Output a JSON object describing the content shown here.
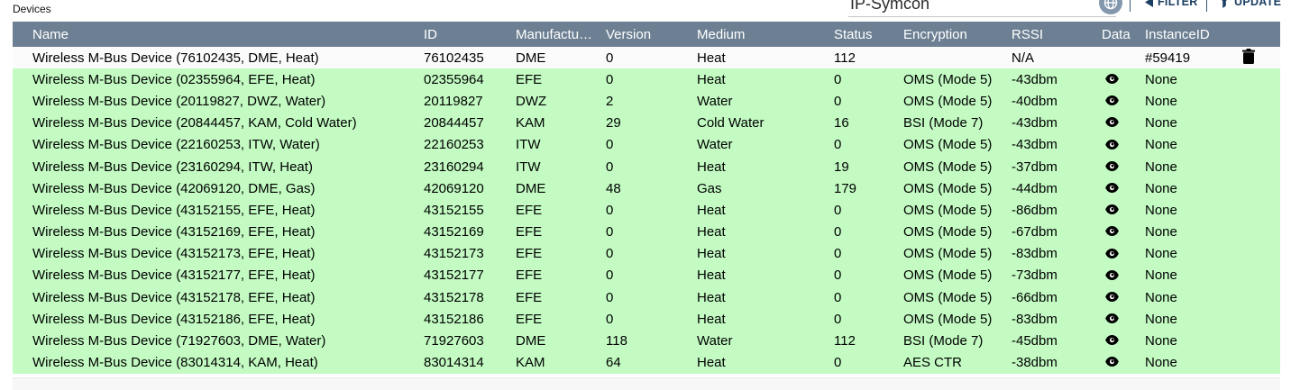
{
  "page": {
    "label": "Devices"
  },
  "toolbar": {
    "app_title": "IP-Symcon",
    "filter_label": "FILTER",
    "update_label": "UPDATE",
    "divider": "|"
  },
  "colors": {
    "header_bg": "#6d8093",
    "highlight_green": "#c3fbc3",
    "toolbar_fg": "#1b3f63",
    "globe_bg": "#8498ad"
  },
  "icons": {
    "globe": "globe-icon",
    "filter": "filter-funnel-icon",
    "update": "update-funnel-icon",
    "eye": "eye-icon",
    "trash": "trash-icon"
  },
  "table": {
    "columns": [
      {
        "key": "name",
        "label": "Name"
      },
      {
        "key": "id",
        "label": "ID"
      },
      {
        "key": "manufacturer",
        "label": "Manufactu…"
      },
      {
        "key": "version",
        "label": "Version"
      },
      {
        "key": "medium",
        "label": "Medium"
      },
      {
        "key": "status",
        "label": "Status"
      },
      {
        "key": "encryption",
        "label": "Encryption"
      },
      {
        "key": "rssi",
        "label": "RSSI"
      },
      {
        "key": "data",
        "label": "Data"
      },
      {
        "key": "instanceid",
        "label": "InstanceID"
      },
      {
        "key": "action",
        "label": ""
      }
    ],
    "rows": [
      {
        "name": "Wireless M-Bus Device (76102435, DME, Heat)",
        "id": "76102435",
        "manufacturer": "DME",
        "version": "0",
        "medium": "Heat",
        "status": "112",
        "encryption": "",
        "rssi": "N/A",
        "has_data_icon": false,
        "instanceid": "#59419",
        "deletable": true,
        "highlight": false
      },
      {
        "name": "Wireless M-Bus Device (02355964, EFE, Heat)",
        "id": "02355964",
        "manufacturer": "EFE",
        "version": "0",
        "medium": "Heat",
        "status": "0",
        "encryption": "OMS (Mode 5)",
        "rssi": "-43dbm",
        "has_data_icon": true,
        "instanceid": "None",
        "deletable": false,
        "highlight": true
      },
      {
        "name": "Wireless M-Bus Device (20119827, DWZ, Water)",
        "id": "20119827",
        "manufacturer": "DWZ",
        "version": "2",
        "medium": "Water",
        "status": "0",
        "encryption": "OMS (Mode 5)",
        "rssi": "-40dbm",
        "has_data_icon": true,
        "instanceid": "None",
        "deletable": false,
        "highlight": true
      },
      {
        "name": "Wireless M-Bus Device (20844457, KAM, Cold Water)",
        "id": "20844457",
        "manufacturer": "KAM",
        "version": "29",
        "medium": "Cold Water",
        "status": "16",
        "encryption": "BSI (Mode 7)",
        "rssi": "-43dbm",
        "has_data_icon": true,
        "instanceid": "None",
        "deletable": false,
        "highlight": true
      },
      {
        "name": "Wireless M-Bus Device (22160253, ITW, Water)",
        "id": "22160253",
        "manufacturer": "ITW",
        "version": "0",
        "medium": "Water",
        "status": "0",
        "encryption": "OMS (Mode 5)",
        "rssi": "-43dbm",
        "has_data_icon": true,
        "instanceid": "None",
        "deletable": false,
        "highlight": true
      },
      {
        "name": "Wireless M-Bus Device (23160294, ITW, Heat)",
        "id": "23160294",
        "manufacturer": "ITW",
        "version": "0",
        "medium": "Heat",
        "status": "19",
        "encryption": "OMS (Mode 5)",
        "rssi": "-37dbm",
        "has_data_icon": true,
        "instanceid": "None",
        "deletable": false,
        "highlight": true
      },
      {
        "name": "Wireless M-Bus Device (42069120, DME, Gas)",
        "id": "42069120",
        "manufacturer": "DME",
        "version": "48",
        "medium": "Gas",
        "status": "179",
        "encryption": "OMS (Mode 5)",
        "rssi": "-44dbm",
        "has_data_icon": true,
        "instanceid": "None",
        "deletable": false,
        "highlight": true
      },
      {
        "name": "Wireless M-Bus Device (43152155, EFE, Heat)",
        "id": "43152155",
        "manufacturer": "EFE",
        "version": "0",
        "medium": "Heat",
        "status": "0",
        "encryption": "OMS (Mode 5)",
        "rssi": "-86dbm",
        "has_data_icon": true,
        "instanceid": "None",
        "deletable": false,
        "highlight": true
      },
      {
        "name": "Wireless M-Bus Device (43152169, EFE, Heat)",
        "id": "43152169",
        "manufacturer": "EFE",
        "version": "0",
        "medium": "Heat",
        "status": "0",
        "encryption": "OMS (Mode 5)",
        "rssi": "-67dbm",
        "has_data_icon": true,
        "instanceid": "None",
        "deletable": false,
        "highlight": true
      },
      {
        "name": "Wireless M-Bus Device (43152173, EFE, Heat)",
        "id": "43152173",
        "manufacturer": "EFE",
        "version": "0",
        "medium": "Heat",
        "status": "0",
        "encryption": "OMS (Mode 5)",
        "rssi": "-83dbm",
        "has_data_icon": true,
        "instanceid": "None",
        "deletable": false,
        "highlight": true
      },
      {
        "name": "Wireless M-Bus Device (43152177, EFE, Heat)",
        "id": "43152177",
        "manufacturer": "EFE",
        "version": "0",
        "medium": "Heat",
        "status": "0",
        "encryption": "OMS (Mode 5)",
        "rssi": "-73dbm",
        "has_data_icon": true,
        "instanceid": "None",
        "deletable": false,
        "highlight": true
      },
      {
        "name": "Wireless M-Bus Device (43152178, EFE, Heat)",
        "id": "43152178",
        "manufacturer": "EFE",
        "version": "0",
        "medium": "Heat",
        "status": "0",
        "encryption": "OMS (Mode 5)",
        "rssi": "-66dbm",
        "has_data_icon": true,
        "instanceid": "None",
        "deletable": false,
        "highlight": true
      },
      {
        "name": "Wireless M-Bus Device (43152186, EFE, Heat)",
        "id": "43152186",
        "manufacturer": "EFE",
        "version": "0",
        "medium": "Heat",
        "status": "0",
        "encryption": "OMS (Mode 5)",
        "rssi": "-83dbm",
        "has_data_icon": true,
        "instanceid": "None",
        "deletable": false,
        "highlight": true
      },
      {
        "name": "Wireless M-Bus Device (71927603, DME, Water)",
        "id": "71927603",
        "manufacturer": "DME",
        "version": "118",
        "medium": "Water",
        "status": "112",
        "encryption": "BSI (Mode 7)",
        "rssi": "-45dbm",
        "has_data_icon": true,
        "instanceid": "None",
        "deletable": false,
        "highlight": true
      },
      {
        "name": "Wireless M-Bus Device (83014314, KAM, Heat)",
        "id": "83014314",
        "manufacturer": "KAM",
        "version": "64",
        "medium": "Heat",
        "status": "0",
        "encryption": "AES CTR",
        "rssi": "-38dbm",
        "has_data_icon": true,
        "instanceid": "None",
        "deletable": false,
        "highlight": true
      }
    ]
  }
}
